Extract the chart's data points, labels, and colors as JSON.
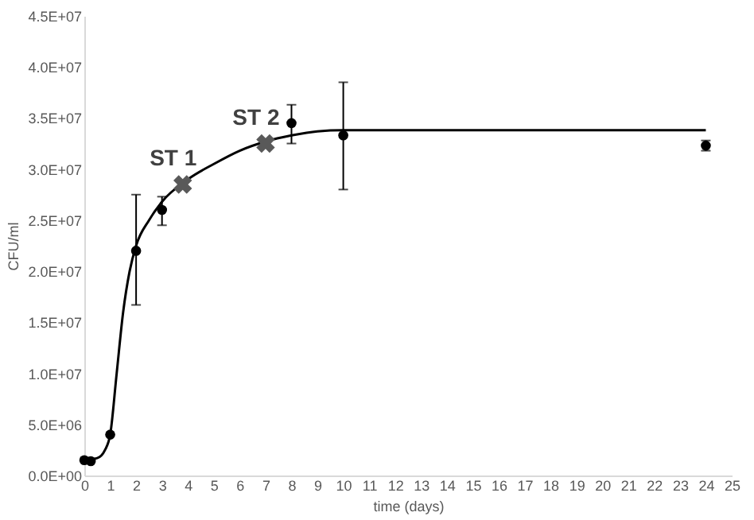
{
  "chart_data": {
    "type": "scatter",
    "xlabel": "time (days)",
    "ylabel": "CFU/ml",
    "xlim": [
      0,
      25
    ],
    "xticks": [
      0,
      1,
      2,
      3,
      4,
      5,
      6,
      7,
      8,
      9,
      10,
      11,
      12,
      13,
      14,
      15,
      16,
      17,
      18,
      19,
      20,
      21,
      22,
      23,
      24,
      25
    ],
    "ylim": [
      0,
      45000000
    ],
    "yticks": [
      {
        "value": 0,
        "label": "0.0E+00"
      },
      {
        "value": 5000000,
        "label": "5.0E+06"
      },
      {
        "value": 10000000,
        "label": "1.0E+07"
      },
      {
        "value": 15000000,
        "label": "1.5E+07"
      },
      {
        "value": 20000000,
        "label": "2.0E+07"
      },
      {
        "value": 25000000,
        "label": "2.5E+07"
      },
      {
        "value": 30000000,
        "label": "3.0E+07"
      },
      {
        "value": 35000000,
        "label": "3.5E+07"
      },
      {
        "value": 40000000,
        "label": "4.0E+07"
      },
      {
        "value": 45000000,
        "label": "4.5E+07"
      }
    ],
    "grid": false,
    "series": [
      {
        "type": "line",
        "color": "#000000",
        "marker": "none",
        "line_style": "solid",
        "x": [
          0,
          0.5,
          0.8,
          1,
          1.25,
          1.5,
          1.75,
          2,
          2.5,
          3,
          4,
          5,
          6,
          7,
          8,
          9,
          10,
          24
        ],
        "values": [
          1500000,
          1700000,
          2500000,
          4000000,
          10000000,
          16000000,
          20000000,
          22500000,
          25000000,
          26800000,
          29000000,
          30500000,
          31800000,
          32700000,
          33300000,
          33700000,
          33800000,
          33800000
        ]
      },
      {
        "color": "#000000",
        "marker": "circle",
        "x": [
          0,
          0.25,
          1,
          2,
          3,
          8,
          10,
          24
        ],
        "values": [
          1500000,
          1400000,
          4000000,
          22000000,
          26000000,
          34500000,
          33300000,
          32300000
        ],
        "errors": [
          null,
          null,
          null,
          [
            16700000,
            27500000
          ],
          [
            24500000,
            27300000
          ],
          [
            32500000,
            36300000
          ],
          [
            28000000,
            38500000
          ],
          [
            31800000,
            32800000
          ]
        ]
      },
      {
        "type": "scatter",
        "color": "#595959",
        "marker": "cross",
        "x": [
          3.8,
          7
        ],
        "values": [
          28500000,
          32500000
        ]
      }
    ],
    "annotations": [
      {
        "text": "ST 1",
        "x": 3.8,
        "y": 28500000
      },
      {
        "text": "ST 2",
        "x": 7,
        "y": 32500000
      }
    ]
  }
}
